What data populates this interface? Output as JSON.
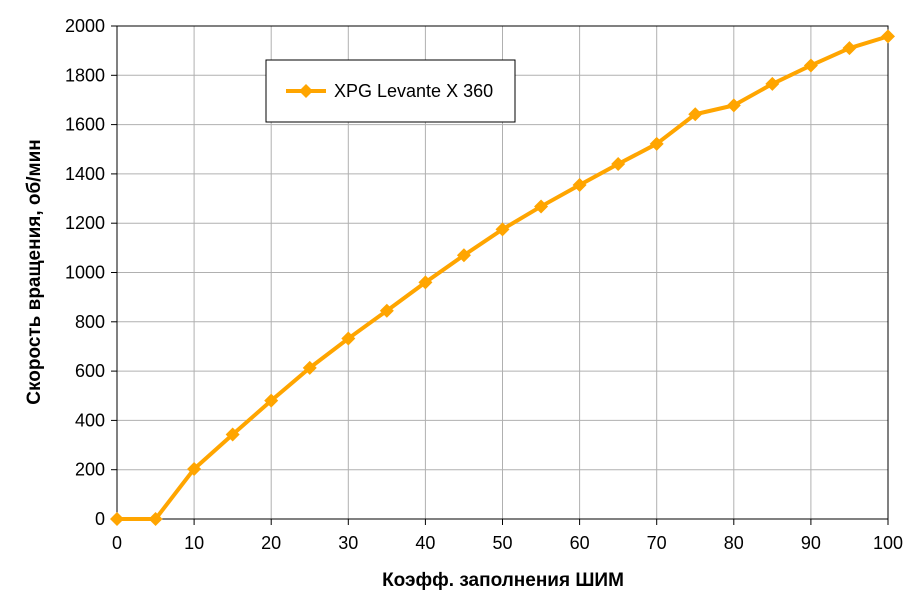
{
  "chart_data": {
    "type": "line",
    "xlabel": "Коэфф. заполнения ШИМ",
    "ylabel": "Скорость вращения, об/мин",
    "xlim": [
      0,
      100
    ],
    "ylim": [
      0,
      2000
    ],
    "x_ticks": [
      0,
      10,
      20,
      30,
      40,
      50,
      60,
      70,
      80,
      90,
      100
    ],
    "y_ticks": [
      0,
      200,
      400,
      600,
      800,
      1000,
      1200,
      1400,
      1600,
      1800,
      2000
    ],
    "grid": true,
    "legend_position": "top-left",
    "series": [
      {
        "name": "XPG Levante X 360",
        "color": "#FFA500",
        "marker": "diamond",
        "x": [
          0,
          5,
          10,
          15,
          20,
          25,
          30,
          35,
          40,
          45,
          50,
          55,
          60,
          65,
          70,
          75,
          80,
          85,
          90,
          95,
          100
        ],
        "y": [
          0,
          0,
          203,
          343,
          480,
          613,
          732,
          845,
          960,
          1070,
          1175,
          1268,
          1355,
          1440,
          1522,
          1642,
          1678,
          1765,
          1840,
          1910,
          1958
        ]
      }
    ]
  }
}
